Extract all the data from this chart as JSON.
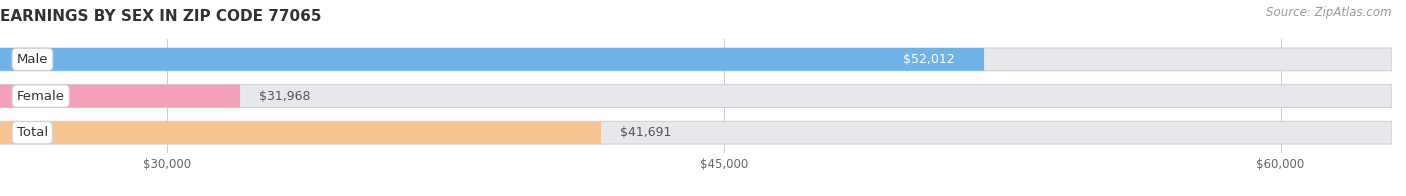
{
  "title": "EARNINGS BY SEX IN ZIP CODE 77065",
  "source": "Source: ZipAtlas.com",
  "categories": [
    "Male",
    "Female",
    "Total"
  ],
  "values": [
    52012,
    31968,
    41691
  ],
  "bar_colors": [
    "#6eb4e8",
    "#f4a0b8",
    "#f5c490"
  ],
  "bar_bg_color": "#e8e8ec",
  "bar_border_color": "#d0d0d8",
  "value_labels": [
    "$52,012",
    "$31,968",
    "$41,691"
  ],
  "xmin": 30000,
  "xmax": 63000,
  "xticks": [
    30000,
    45000,
    60000
  ],
  "xtick_labels": [
    "$30,000",
    "$45,000",
    "$60,000"
  ],
  "background_color": "#ffffff",
  "title_fontsize": 11,
  "source_fontsize": 8.5,
  "bar_label_fontsize": 9,
  "category_label_fontsize": 9.5,
  "label_value_inside": [
    true,
    false,
    false
  ],
  "label_colors": [
    "#ffffff",
    "#555555",
    "#555555"
  ]
}
